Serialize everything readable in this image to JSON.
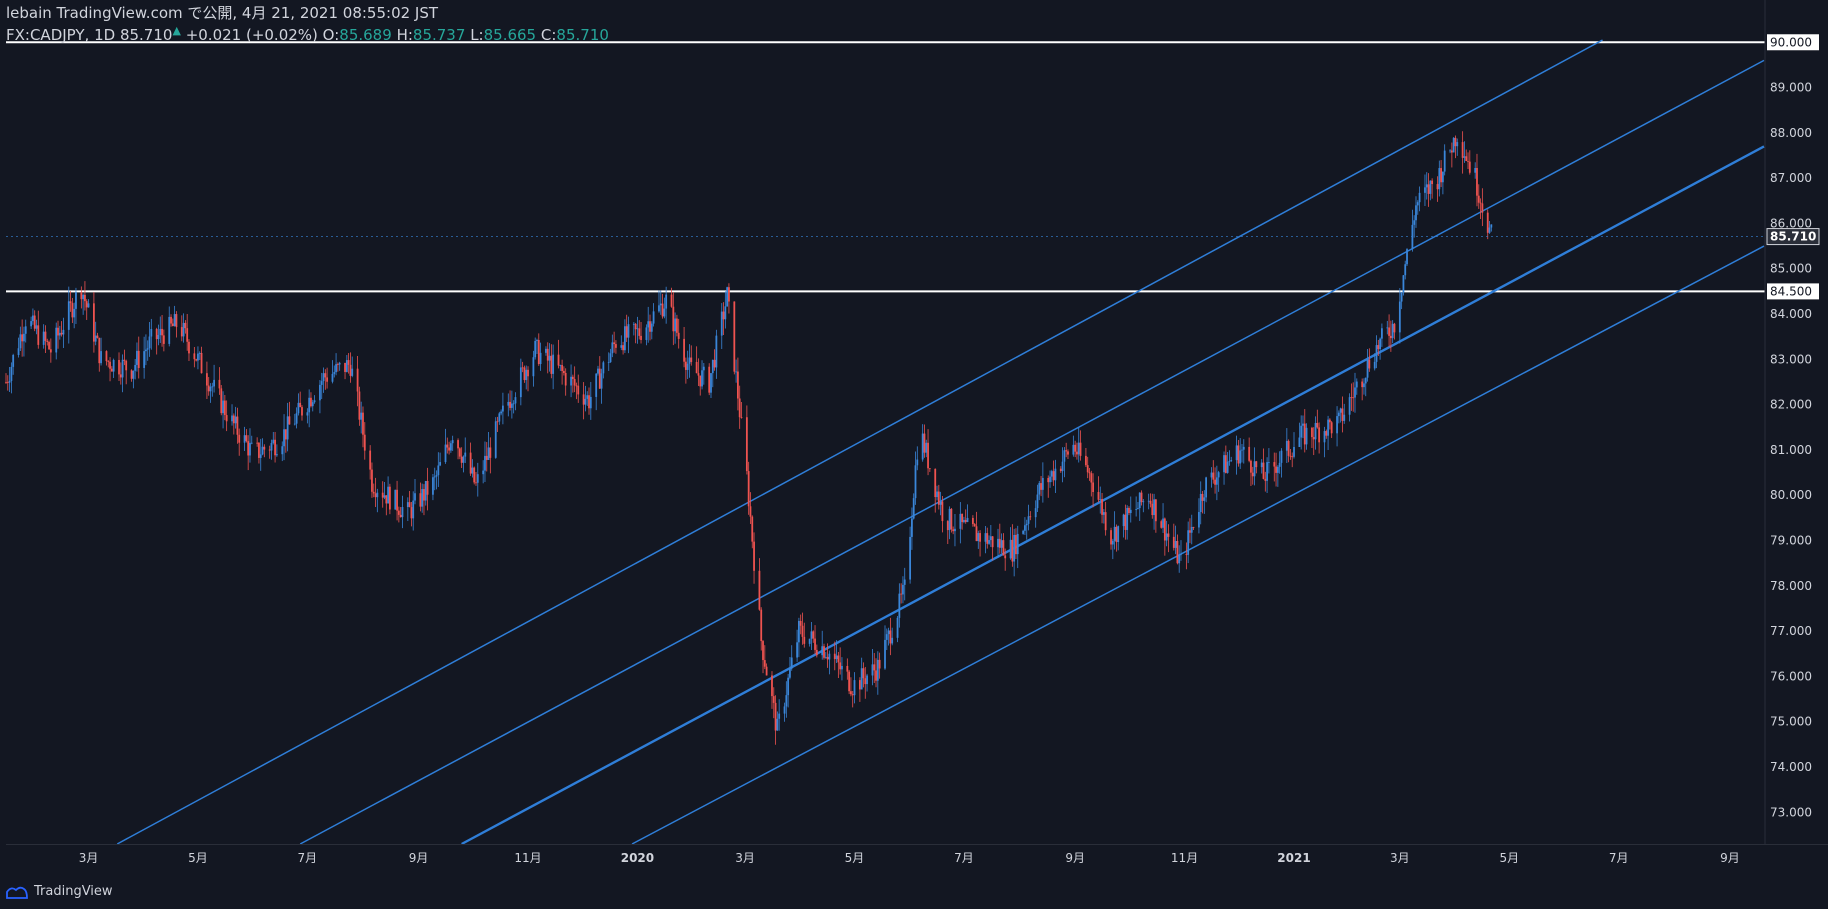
{
  "header": {
    "line1": "lebain TradingView.com で公開, 4月 21, 2021 08:55:02 JST",
    "symbol": "FX:CADJPY, 1D 85.710",
    "change": "+0.021 (+0.02%)",
    "o_label": "O:",
    "o_value": "85.689",
    "h_label": "H:",
    "h_value": "85.737",
    "l_label": "L:",
    "l_value": "85.665",
    "c_label": "C:",
    "c_value": "85.710"
  },
  "footer": {
    "brand": "TradingView"
  },
  "colors": {
    "background": "#131722",
    "up": "#3a86d9",
    "down": "#ef5350",
    "channel": "#2f7ed8",
    "level": "#ffffff"
  },
  "chart_data": {
    "type": "candlestick",
    "symbol": "FX:CADJPY",
    "interval": "1D",
    "ylim": [
      72.3,
      90.05
    ],
    "y_ticks": [
      "73.000",
      "74.000",
      "75.000",
      "76.000",
      "77.000",
      "78.000",
      "79.000",
      "80.000",
      "81.000",
      "82.000",
      "83.000",
      "84.000",
      "85.000",
      "86.000",
      "87.000",
      "88.000",
      "89.000",
      "90.000"
    ],
    "x_ticks": [
      {
        "label": "3月",
        "date": "2019-03-01"
      },
      {
        "label": "5月",
        "date": "2019-05-01"
      },
      {
        "label": "7月",
        "date": "2019-07-01"
      },
      {
        "label": "9月",
        "date": "2019-09-01"
      },
      {
        "label": "11月",
        "date": "2019-11-01"
      },
      {
        "label": "2020",
        "date": "2020-01-01"
      },
      {
        "label": "3月",
        "date": "2020-03-01"
      },
      {
        "label": "5月",
        "date": "2020-05-01"
      },
      {
        "label": "7月",
        "date": "2020-07-01"
      },
      {
        "label": "9月",
        "date": "2020-09-01"
      },
      {
        "label": "11月",
        "date": "2020-11-01"
      },
      {
        "label": "2021",
        "date": "2021-01-01"
      },
      {
        "label": "3月",
        "date": "2021-03-01"
      },
      {
        "label": "5月",
        "date": "2021-05-01"
      },
      {
        "label": "7月",
        "date": "2021-07-01"
      },
      {
        "label": "9月",
        "date": "2021-09-01"
      }
    ],
    "xlim": [
      "2019-01-14",
      "2021-09-20"
    ],
    "price_path": [
      [
        "2019-01-14",
        82.5
      ],
      [
        "2019-01-25",
        83.9
      ],
      [
        "2019-02-08",
        83.2
      ],
      [
        "2019-02-25",
        84.6
      ],
      [
        "2019-03-08",
        83.0
      ],
      [
        "2019-03-25",
        82.8
      ],
      [
        "2019-04-05",
        83.4
      ],
      [
        "2019-04-20",
        83.8
      ],
      [
        "2019-05-05",
        82.7
      ],
      [
        "2019-05-20",
        81.6
      ],
      [
        "2019-06-01",
        80.9
      ],
      [
        "2019-06-15",
        81.2
      ],
      [
        "2019-06-28",
        81.9
      ],
      [
        "2019-07-10",
        82.6
      ],
      [
        "2019-07-25",
        82.9
      ],
      [
        "2019-08-06",
        80.3
      ],
      [
        "2019-08-26",
        79.6
      ],
      [
        "2019-09-10",
        80.3
      ],
      [
        "2019-09-20",
        81.4
      ],
      [
        "2019-10-03",
        80.2
      ],
      [
        "2019-10-20",
        82.0
      ],
      [
        "2019-11-05",
        83.2
      ],
      [
        "2019-11-20",
        82.7
      ],
      [
        "2019-12-05",
        82.1
      ],
      [
        "2019-12-20",
        83.4
      ],
      [
        "2020-01-02",
        83.6
      ],
      [
        "2020-01-17",
        84.3
      ],
      [
        "2020-01-30",
        82.8
      ],
      [
        "2020-02-10",
        82.5
      ],
      [
        "2020-02-20",
        84.4
      ],
      [
        "2020-03-02",
        80.4
      ],
      [
        "2020-03-10",
        76.8
      ],
      [
        "2020-03-19",
        74.8
      ],
      [
        "2020-03-31",
        77.0
      ],
      [
        "2020-04-15",
        76.6
      ],
      [
        "2020-04-30",
        75.8
      ],
      [
        "2020-05-14",
        76.2
      ],
      [
        "2020-05-29",
        77.9
      ],
      [
        "2020-06-06",
        81.5
      ],
      [
        "2020-06-20",
        79.5
      ],
      [
        "2020-07-10",
        79.1
      ],
      [
        "2020-07-28",
        78.8
      ],
      [
        "2020-08-12",
        80.1
      ],
      [
        "2020-08-31",
        81.1
      ],
      [
        "2020-09-10",
        80.4
      ],
      [
        "2020-09-21",
        79.1
      ],
      [
        "2020-10-12",
        80.0
      ],
      [
        "2020-10-30",
        78.5
      ],
      [
        "2020-11-12",
        80.2
      ],
      [
        "2020-12-02",
        81.0
      ],
      [
        "2020-12-15",
        80.4
      ],
      [
        "2021-01-05",
        81.3
      ],
      [
        "2021-01-26",
        81.6
      ],
      [
        "2021-02-15",
        83.2
      ],
      [
        "2021-02-26",
        83.8
      ],
      [
        "2021-03-10",
        86.4
      ],
      [
        "2021-03-22",
        87.0
      ],
      [
        "2021-04-02",
        88.0
      ],
      [
        "2021-04-12",
        87.0
      ],
      [
        "2021-04-21",
        85.71
      ]
    ],
    "current_price": "85.710",
    "horizontal_levels": [
      {
        "value": 84.5,
        "label": "84.500"
      },
      {
        "value": 90.0,
        "label": "90.000"
      }
    ],
    "channel_lines": [
      {
        "from": [
          "2019-03-17",
          72.3
        ],
        "to": [
          "2021-06-22",
          90.05
        ]
      },
      {
        "from": [
          "2019-06-27",
          72.3
        ],
        "to": [
          "2021-09-20",
          89.6
        ]
      },
      {
        "from": [
          "2019-09-25",
          72.3
        ],
        "to": [
          "2021-09-20",
          87.7
        ]
      },
      {
        "from": [
          "2019-12-29",
          72.3
        ],
        "to": [
          "2021-09-20",
          85.5
        ]
      }
    ]
  }
}
